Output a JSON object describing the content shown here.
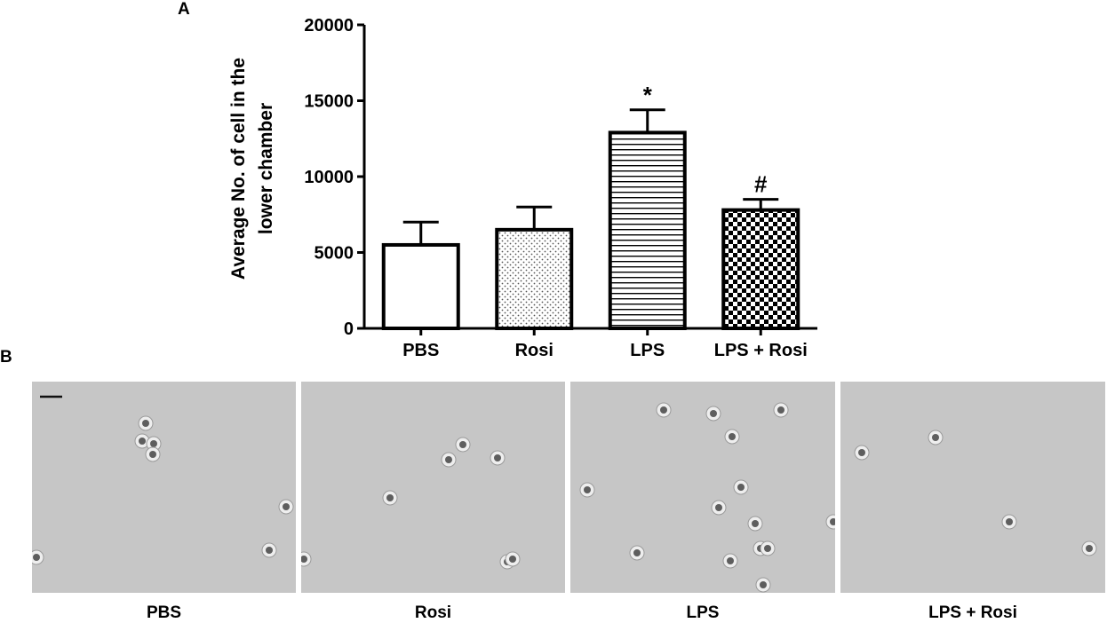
{
  "panels": {
    "a_label": "A",
    "b_label": "B"
  },
  "chart_data": {
    "type": "bar",
    "categories": [
      "PBS",
      "Rosi",
      "LPS",
      "LPS + Rosi"
    ],
    "values": [
      5500,
      6500,
      12900,
      7800
    ],
    "error_up": [
      1500,
      1500,
      1500,
      700
    ],
    "significance": [
      "",
      "",
      "*",
      "#"
    ],
    "patterns": [
      "none",
      "dots",
      "hlines",
      "checker"
    ],
    "ylabel_line1": "Average No. of cell in the",
    "ylabel_line2": "lower chamber",
    "xlabel": "",
    "ylim": [
      0,
      20000
    ],
    "yticks": [
      0,
      5000,
      10000,
      15000,
      20000
    ],
    "grid": false
  },
  "micrographs": [
    {
      "label": "PBS",
      "cells": 7
    },
    {
      "label": "Rosi",
      "cells": 7
    },
    {
      "label": "LPS",
      "cells": 14
    },
    {
      "label": "LPS + Rosi",
      "cells": 4
    }
  ]
}
